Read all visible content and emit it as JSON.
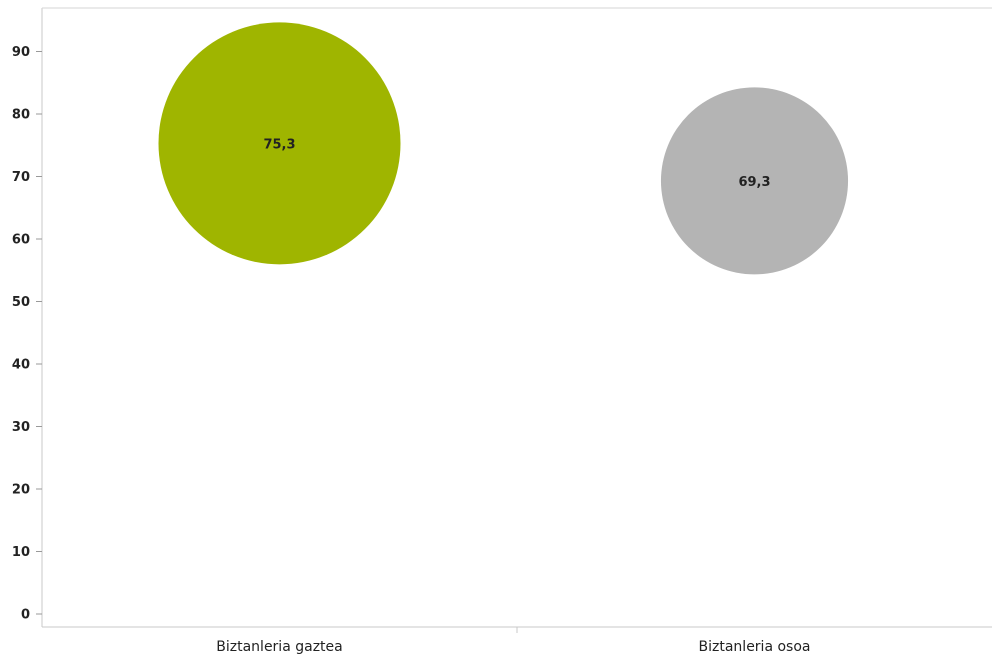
{
  "chart_data": {
    "type": "scatter",
    "categories": [
      "Biztanleria gaztea",
      "Biztanleria osoa"
    ],
    "values": [
      75.3,
      69.3
    ],
    "data_labels": [
      "75,3",
      "69,3"
    ],
    "colors": [
      "#9fb500",
      "#b4b4b4"
    ],
    "yticks": [
      "0",
      "10",
      "20",
      "30",
      "40",
      "50",
      "60",
      "70",
      "80",
      "90"
    ],
    "ylim": [
      0,
      97
    ],
    "grid": false,
    "legend": "none"
  }
}
